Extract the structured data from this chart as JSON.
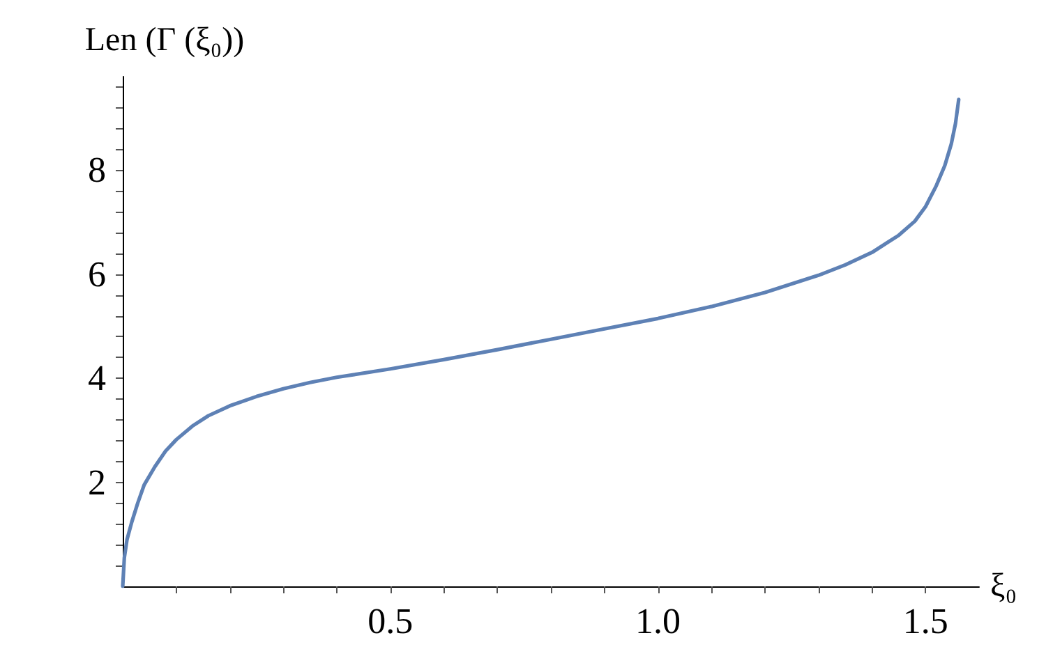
{
  "chart_data": {
    "type": "line",
    "xlabel": "ξ₀",
    "ylabel": "Len (Γ (ξ₀))",
    "x": [
      0,
      0.003,
      0.008,
      0.017,
      0.028,
      0.04,
      0.06,
      0.08,
      0.1,
      0.13,
      0.16,
      0.2,
      0.25,
      0.3,
      0.35,
      0.4,
      0.5,
      0.6,
      0.7,
      0.8,
      0.9,
      1.0,
      1.1,
      1.2,
      1.3,
      1.35,
      1.4,
      1.45,
      1.48,
      1.5,
      1.52,
      1.536,
      1.548,
      1.556,
      1.562
    ],
    "series": [
      {
        "color": "#5e81b5",
        "values": [
          0,
          0.55,
          0.9,
          1.24,
          1.6,
          1.95,
          2.3,
          2.6,
          2.82,
          3.08,
          3.28,
          3.47,
          3.65,
          3.8,
          3.92,
          4.02,
          4.18,
          4.36,
          4.55,
          4.75,
          4.95,
          5.15,
          5.38,
          5.65,
          5.98,
          6.18,
          6.42,
          6.75,
          7.02,
          7.3,
          7.7,
          8.09,
          8.5,
          8.9,
          9.36
        ]
      }
    ],
    "xlim": [
      0,
      1.6
    ],
    "ylim": [
      0,
      9.8
    ],
    "xticks": [
      {
        "value": 0.1,
        "label": null
      },
      {
        "value": 0.2,
        "label": null
      },
      {
        "value": 0.3,
        "label": null
      },
      {
        "value": 0.4,
        "label": null
      },
      {
        "value": 0.5,
        "label": "0.5"
      },
      {
        "value": 0.6,
        "label": null
      },
      {
        "value": 0.7,
        "label": null
      },
      {
        "value": 0.8,
        "label": null
      },
      {
        "value": 0.9,
        "label": null
      },
      {
        "value": 1.0,
        "label": "1.0"
      },
      {
        "value": 1.1,
        "label": null
      },
      {
        "value": 1.2,
        "label": null
      },
      {
        "value": 1.3,
        "label": null
      },
      {
        "value": 1.4,
        "label": null
      },
      {
        "value": 1.5,
        "label": "1.5"
      }
    ],
    "yticks": [
      {
        "value": 0.4,
        "label": null
      },
      {
        "value": 0.8,
        "label": null
      },
      {
        "value": 1.2,
        "label": null
      },
      {
        "value": 1.6,
        "label": null
      },
      2,
      {
        "value": 2.4,
        "label": null
      },
      {
        "value": 2.8,
        "label": null
      },
      {
        "value": 3.2,
        "label": null
      },
      {
        "value": 3.6,
        "label": null
      },
      4,
      {
        "value": 4.4,
        "label": null
      },
      {
        "value": 4.8,
        "label": null
      },
      {
        "value": 5.2,
        "label": null
      },
      {
        "value": 5.6,
        "label": null
      },
      6,
      {
        "value": 6.4,
        "label": null
      },
      {
        "value": 6.8,
        "label": null
      },
      {
        "value": 7.2,
        "label": null
      },
      {
        "value": 7.6,
        "label": null
      },
      8,
      {
        "value": 8.4,
        "label": null
      },
      {
        "value": 8.8,
        "label": null
      },
      {
        "value": 9.2,
        "label": null
      },
      {
        "value": 9.6,
        "label": null
      }
    ],
    "grid": false,
    "marker": "none",
    "line_style": "solid"
  }
}
